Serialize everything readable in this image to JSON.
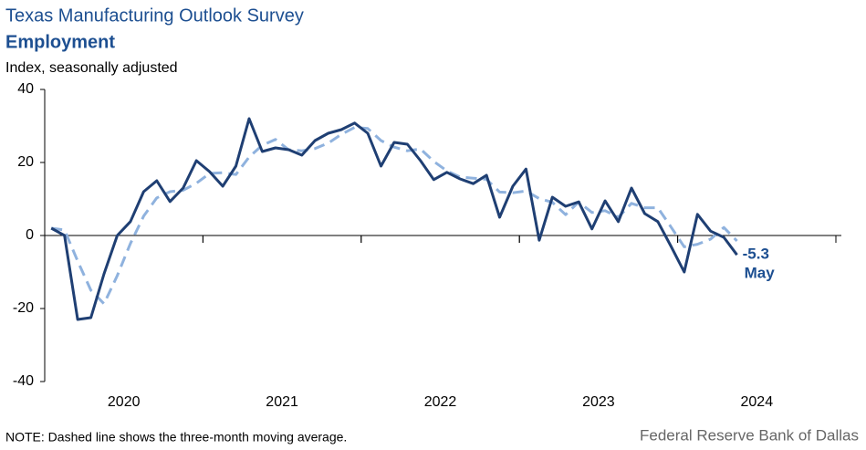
{
  "chart_data": {
    "type": "line",
    "title": "Texas Manufacturing Outlook Survey",
    "subtitle": "Employment",
    "y_label": "Index, seasonally adjusted",
    "note": "NOTE: Dashed line shows the three-month  moving average.",
    "source": "Federal Reserve Bank of Dallas",
    "year_labels": [
      "2020",
      "2021",
      "2022",
      "2023",
      "2024"
    ],
    "categories": [
      null,
      null,
      null,
      null,
      null,
      null,
      null,
      null,
      null,
      null,
      null,
      null,
      null,
      null,
      null,
      null,
      null,
      null,
      null,
      null,
      null,
      null,
      null,
      null,
      null,
      null,
      null,
      null,
      null,
      null,
      null,
      null,
      null,
      null,
      null,
      null,
      null,
      null,
      null,
      null,
      null,
      null,
      null,
      null,
      null,
      null,
      null,
      null,
      null,
      null,
      null,
      null,
      null
    ],
    "series": [
      {
        "name": "Employment",
        "color": "#1f3f73",
        "dashed": false,
        "values": [
          2,
          0,
          -23,
          -22.5,
          -10.5,
          0,
          3.8,
          12,
          15,
          9.3,
          13,
          20.5,
          17.5,
          13.5,
          19,
          32,
          23,
          24,
          23.5,
          22,
          26,
          28,
          29,
          30.8,
          28,
          19,
          25.5,
          25,
          20.5,
          15.3,
          17.3,
          15.5,
          14.2,
          16.5,
          5,
          13.5,
          18.2,
          -1.3,
          10.5,
          8,
          9.2,
          1.8,
          9.5,
          3.8,
          13,
          6,
          3.8,
          -3,
          -10,
          5.8,
          1.2,
          -0.5,
          -5.3
        ]
      },
      {
        "name": "Three-month moving average",
        "color": "#8fb2de",
        "dashed": true,
        "values": [
          2,
          1.5,
          -7,
          -15,
          -18.7,
          -11,
          -2.2,
          5.3,
          10.3,
          12,
          12.4,
          14.3,
          17,
          17.2,
          16.7,
          21.5,
          24.7,
          26.3,
          23.5,
          23.2,
          23.8,
          25.3,
          27.7,
          29.6,
          29.3,
          26,
          24.2,
          23.2,
          23.7,
          20.3,
          17.7,
          16,
          15.7,
          15.4,
          11.9,
          11.7,
          12.2,
          10.1,
          9.1,
          5.7,
          9.2,
          6.3,
          6.8,
          5,
          8.8,
          7.6,
          7.6,
          2.3,
          -3.1,
          -2.4,
          -1,
          2.2,
          -1.5
        ]
      }
    ],
    "annotations": [
      {
        "value": -5.3,
        "label": "-5.3",
        "text": "May",
        "index": 52
      }
    ],
    "ylim": [
      -40,
      40
    ],
    "yticks": [
      -40,
      -20,
      0,
      20,
      40
    ]
  }
}
